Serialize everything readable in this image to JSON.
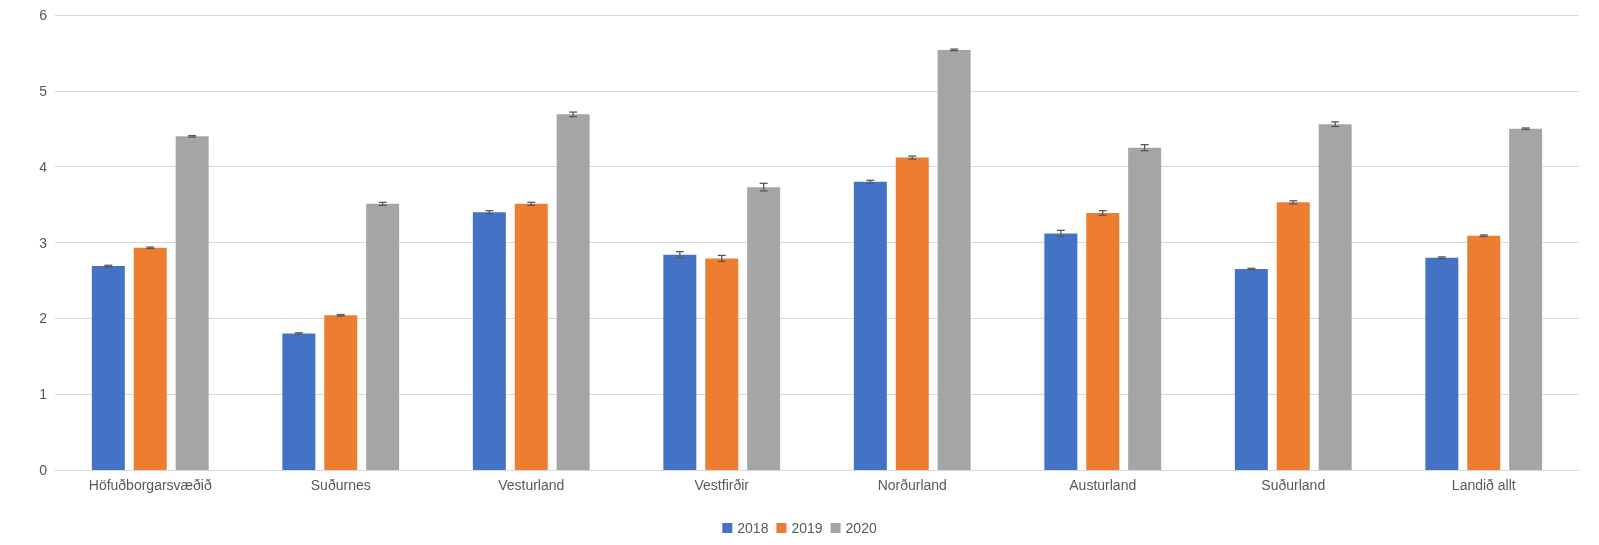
{
  "chart_data": {
    "type": "bar",
    "categories": [
      "Höfuðborgarsvæðið",
      "Suðurnes",
      "Vesturland",
      "Vestfirðir",
      "Norðurland",
      "Austurland",
      "Suðurland",
      "Landið allt"
    ],
    "series": [
      {
        "name": "2018",
        "color": "#4472c4",
        "values": [
          2.69,
          1.8,
          3.4,
          2.84,
          3.8,
          3.12,
          2.65,
          2.8
        ],
        "errors": [
          0.01,
          0.01,
          0.02,
          0.04,
          0.02,
          0.04,
          0.01,
          0.01
        ]
      },
      {
        "name": "2019",
        "color": "#ed7d31",
        "values": [
          2.93,
          2.04,
          3.51,
          2.79,
          4.12,
          3.39,
          3.53,
          3.09
        ],
        "errors": [
          0.01,
          0.01,
          0.02,
          0.04,
          0.02,
          0.03,
          0.02,
          0.01
        ]
      },
      {
        "name": "2020",
        "color": "#a5a5a5",
        "values": [
          4.4,
          3.51,
          4.69,
          3.73,
          5.54,
          4.25,
          4.56,
          4.5
        ],
        "errors": [
          0.01,
          0.02,
          0.03,
          0.05,
          0.01,
          0.04,
          0.03,
          0.01
        ]
      }
    ],
    "ylim": [
      0,
      6
    ],
    "yticks": [
      0,
      1,
      2,
      3,
      4,
      5,
      6
    ],
    "grid": "y",
    "legend": "bottom"
  }
}
